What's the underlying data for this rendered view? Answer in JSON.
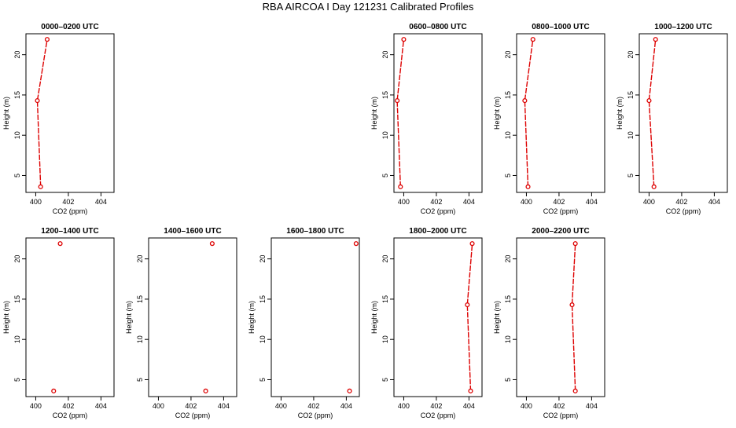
{
  "page_title": "RBA AIRCOA I  Day 121231  Calibrated Profiles",
  "colors": {
    "series": "#dd0000",
    "axis": "#000000",
    "background": "#ffffff"
  },
  "chart_data": [
    {
      "type": "line",
      "title": "0000–0200 UTC",
      "xlabel": "CO2 (ppm)",
      "ylabel": "Height (m)",
      "xlim": [
        399.4,
        404.8
      ],
      "ylim": [
        2.9,
        22.6
      ],
      "xticks": [
        400,
        402,
        404
      ],
      "yticks": [
        5,
        10,
        15,
        20
      ],
      "grid": false,
      "connected": true,
      "points": [
        {
          "x": 400.3,
          "y": 3.6
        },
        {
          "x": 400.1,
          "y": 14.3
        },
        {
          "x": 400.7,
          "y": 21.9
        }
      ]
    },
    {
      "type": "line",
      "title": "0600–0800 UTC",
      "xlabel": "CO2 (ppm)",
      "ylabel": "Height (m)",
      "xlim": [
        399.4,
        404.8
      ],
      "ylim": [
        2.9,
        22.6
      ],
      "xticks": [
        400,
        402,
        404
      ],
      "yticks": [
        5,
        10,
        15,
        20
      ],
      "grid": false,
      "connected": true,
      "points": [
        {
          "x": 399.8,
          "y": 3.6
        },
        {
          "x": 399.6,
          "y": 14.3
        },
        {
          "x": 400.0,
          "y": 21.9
        }
      ]
    },
    {
      "type": "line",
      "title": "0800–1000 UTC",
      "xlabel": "CO2 (ppm)",
      "ylabel": "Height (m)",
      "xlim": [
        399.4,
        404.8
      ],
      "ylim": [
        2.9,
        22.6
      ],
      "xticks": [
        400,
        402,
        404
      ],
      "yticks": [
        5,
        10,
        15,
        20
      ],
      "grid": false,
      "connected": true,
      "points": [
        {
          "x": 400.1,
          "y": 3.6
        },
        {
          "x": 399.9,
          "y": 14.3
        },
        {
          "x": 400.4,
          "y": 21.9
        }
      ]
    },
    {
      "type": "line",
      "title": "1000–1200 UTC",
      "xlabel": "CO2 (ppm)",
      "ylabel": "Height (m)",
      "xlim": [
        399.4,
        404.8
      ],
      "ylim": [
        2.9,
        22.6
      ],
      "xticks": [
        400,
        402,
        404
      ],
      "yticks": [
        5,
        10,
        15,
        20
      ],
      "grid": false,
      "connected": true,
      "points": [
        {
          "x": 400.3,
          "y": 3.6
        },
        {
          "x": 400.0,
          "y": 14.3
        },
        {
          "x": 400.4,
          "y": 21.9
        }
      ]
    },
    {
      "type": "scatter",
      "title": "1200–1400 UTC",
      "xlabel": "CO2 (ppm)",
      "ylabel": "Height (m)",
      "xlim": [
        399.4,
        404.8
      ],
      "ylim": [
        2.9,
        22.6
      ],
      "xticks": [
        400,
        402,
        404
      ],
      "yticks": [
        5,
        10,
        15,
        20
      ],
      "grid": false,
      "connected": false,
      "points": [
        {
          "x": 401.1,
          "y": 3.6
        },
        {
          "x": 401.5,
          "y": 21.9
        }
      ]
    },
    {
      "type": "scatter",
      "title": "1400–1600 UTC",
      "xlabel": "CO2 (ppm)",
      "ylabel": "Height (m)",
      "xlim": [
        399.4,
        404.8
      ],
      "ylim": [
        2.9,
        22.6
      ],
      "xticks": [
        400,
        402,
        404
      ],
      "yticks": [
        5,
        10,
        15,
        20
      ],
      "grid": false,
      "connected": false,
      "points": [
        {
          "x": 402.9,
          "y": 3.6
        },
        {
          "x": 403.3,
          "y": 21.9
        }
      ]
    },
    {
      "type": "scatter",
      "title": "1600–1800 UTC",
      "xlabel": "CO2 (ppm)",
      "ylabel": "Height (m)",
      "xlim": [
        399.4,
        404.8
      ],
      "ylim": [
        2.9,
        22.6
      ],
      "xticks": [
        400,
        402,
        404
      ],
      "yticks": [
        5,
        10,
        15,
        20
      ],
      "grid": false,
      "connected": false,
      "points": [
        {
          "x": 404.2,
          "y": 3.6
        },
        {
          "x": 404.6,
          "y": 21.9
        }
      ]
    },
    {
      "type": "line",
      "title": "1800–2000 UTC",
      "xlabel": "CO2 (ppm)",
      "ylabel": "Height (m)",
      "xlim": [
        399.4,
        404.8
      ],
      "ylim": [
        2.9,
        22.6
      ],
      "xticks": [
        400,
        402,
        404
      ],
      "yticks": [
        5,
        10,
        15,
        20
      ],
      "grid": false,
      "connected": true,
      "points": [
        {
          "x": 404.1,
          "y": 3.6
        },
        {
          "x": 403.9,
          "y": 14.3
        },
        {
          "x": 404.2,
          "y": 21.9
        }
      ]
    },
    {
      "type": "line",
      "title": "2000–2200 UTC",
      "xlabel": "CO2 (ppm)",
      "ylabel": "Height (m)",
      "xlim": [
        399.4,
        404.8
      ],
      "ylim": [
        2.9,
        22.6
      ],
      "xticks": [
        400,
        402,
        404
      ],
      "yticks": [
        5,
        10,
        15,
        20
      ],
      "grid": false,
      "connected": true,
      "points": [
        {
          "x": 403.0,
          "y": 3.6
        },
        {
          "x": 402.8,
          "y": 14.3
        },
        {
          "x": 403.0,
          "y": 21.9
        }
      ]
    }
  ]
}
